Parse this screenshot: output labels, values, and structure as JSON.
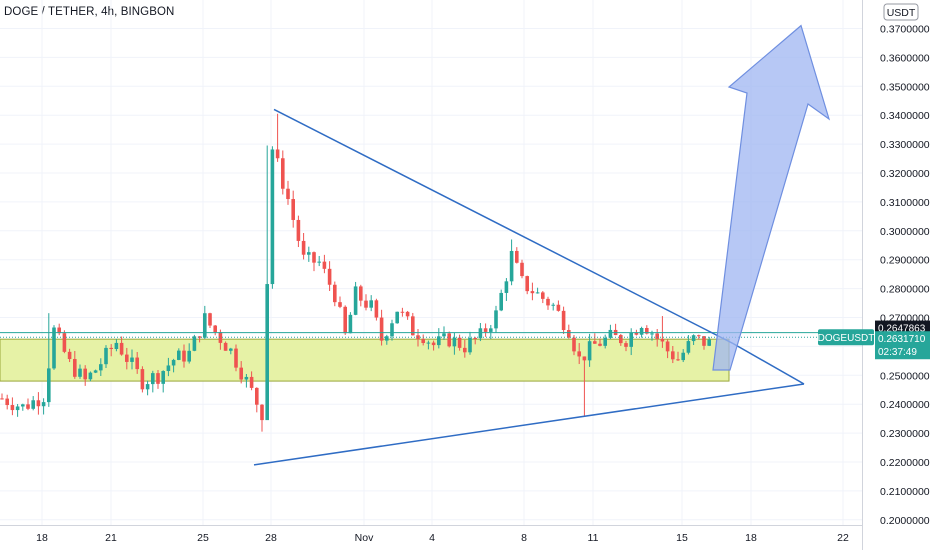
{
  "header": {
    "title": "DOGE / TETHER, 4h, BINGBON"
  },
  "price_scale": {
    "unit_label": "USDT",
    "tick_labels": [
      "0.3700000",
      "0.3600000",
      "0.3500000",
      "0.3400000",
      "0.3300000",
      "0.3200000",
      "0.3100000",
      "0.3000000",
      "0.2900000",
      "0.2800000",
      "0.2700000",
      "0.2600000",
      "0.2500000",
      "0.2400000",
      "0.2300000",
      "0.2200000",
      "0.2100000",
      "0.2000000"
    ]
  },
  "time_scale": {
    "tick_labels": [
      "18",
      "21",
      "25",
      "28",
      "Nov",
      "4",
      "8",
      "11",
      "15",
      "18",
      "22"
    ]
  },
  "symbol_tag": {
    "label": "DOGEUSDT"
  },
  "price_tags": {
    "upper": "0.2647863",
    "last": "0.2631710",
    "countdown": "02:37:49"
  },
  "colors": {
    "up": "#26a69a",
    "down": "#ef5350",
    "trendline": "#2f6cc4",
    "zone_fill": "#e6f2a6",
    "zone_border": "#9aa83a",
    "arrow_fill": "#9fb6f2",
    "price_line": "#26a69a"
  },
  "chart_data": {
    "type": "candlestick",
    "title": "DOGE / TETHER, 4h, BINGBON",
    "ylabel": "USDT",
    "ylim": [
      0.2,
      0.37
    ],
    "x_tick_labels": [
      "18",
      "21",
      "25",
      "28",
      "Nov",
      "4",
      "8",
      "11",
      "15",
      "18",
      "22"
    ],
    "last_price": 0.263171,
    "upper_price_line": 0.2647863,
    "series": [
      {
        "close_path": [
          [
            0,
            0.242
          ],
          [
            4,
            0.239
          ],
          [
            8,
            0.243
          ],
          [
            10,
            0.2655
          ],
          [
            13,
            0.254
          ],
          [
            16,
            0.248
          ],
          [
            18,
            0.252
          ],
          [
            22,
            0.2615
          ],
          [
            24,
            0.256
          ],
          [
            27,
            0.248
          ],
          [
            30,
            0.25
          ],
          [
            33,
            0.2555
          ],
          [
            36,
            0.2575
          ],
          [
            39,
            0.2695
          ],
          [
            41,
            0.265
          ],
          [
            44,
            0.2585
          ],
          [
            47,
            0.248
          ],
          [
            50,
            0.237
          ],
          [
            52,
            0.3285
          ],
          [
            55,
            0.311
          ],
          [
            58,
            0.29
          ],
          [
            61,
            0.289
          ],
          [
            64,
            0.278
          ],
          [
            66,
            0.2635
          ],
          [
            68,
            0.278
          ],
          [
            71,
            0.2735
          ],
          [
            73,
            0.2625
          ],
          [
            76,
            0.273
          ],
          [
            79,
            0.2655
          ],
          [
            81,
            0.264
          ],
          [
            83,
            0.2605
          ],
          [
            86,
            0.2625
          ],
          [
            89,
            0.26
          ],
          [
            92,
            0.2635
          ],
          [
            95,
            0.271
          ],
          [
            98,
            0.2915
          ],
          [
            100,
            0.282
          ],
          [
            103,
            0.278
          ],
          [
            106,
            0.274
          ],
          [
            109,
            0.266
          ],
          [
            111,
            0.2555
          ],
          [
            114,
            0.2605
          ],
          [
            117,
            0.263
          ],
          [
            120,
            0.2625
          ],
          [
            123,
            0.2685
          ],
          [
            125,
            0.265
          ],
          [
            128,
            0.2585
          ],
          [
            130,
            0.2555
          ],
          [
            133,
            0.2625
          ],
          [
            136,
            0.261
          ]
        ]
      }
    ],
    "shapes": {
      "triangle_upper_line": [
        [
          0.27,
          0.342
        ],
        [
          0.715,
          0.264
        ]
      ],
      "triangle_lower_line": [
        [
          0.27,
          0.219
        ],
        [
          0.805,
          0.247
        ]
      ],
      "support_zone": [
        0.248,
        0.2625
      ],
      "arrow_target": 0.371
    }
  }
}
